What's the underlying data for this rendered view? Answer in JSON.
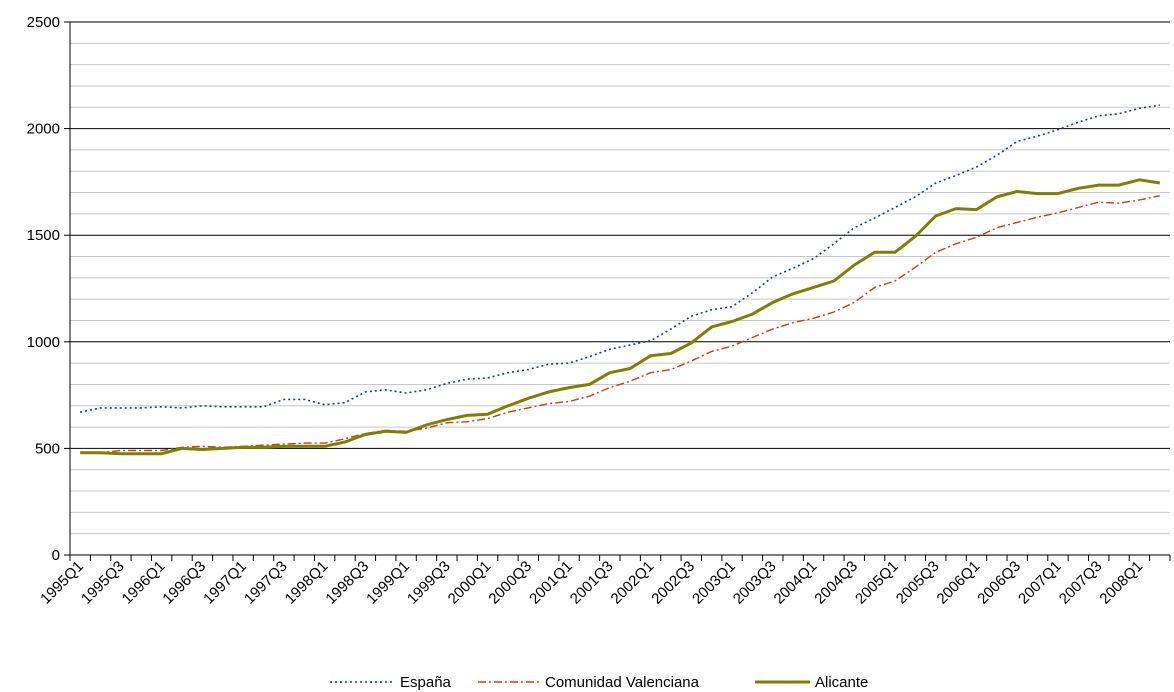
{
  "chart_data": {
    "type": "line",
    "title": "",
    "xlabel": "",
    "ylabel": "",
    "ylim": [
      0,
      2500
    ],
    "yticks": [
      0,
      500,
      1000,
      1500,
      2000,
      2500
    ],
    "y_minor_step": 100,
    "grid": "horizontal",
    "legend_position": "bottom",
    "categories": [
      "1995Q1",
      "1995Q2",
      "1995Q3",
      "1995Q4",
      "1996Q1",
      "1996Q2",
      "1996Q3",
      "1996Q4",
      "1997Q1",
      "1997Q2",
      "1997Q3",
      "1997Q4",
      "1998Q1",
      "1998Q2",
      "1998Q3",
      "1998Q4",
      "1999Q1",
      "1999Q2",
      "1999Q3",
      "1999Q4",
      "2000Q1",
      "2000Q2",
      "2000Q3",
      "2000Q4",
      "2001Q1",
      "2001Q2",
      "2001Q3",
      "2001Q4",
      "2002Q1",
      "2002Q2",
      "2002Q3",
      "2002Q4",
      "2003Q1",
      "2003Q2",
      "2003Q3",
      "2003Q4",
      "2004Q1",
      "2004Q2",
      "2004Q3",
      "2004Q4",
      "2005Q1",
      "2005Q2",
      "2005Q3",
      "2005Q4",
      "2006Q1",
      "2006Q2",
      "2006Q3",
      "2006Q4",
      "2007Q1",
      "2007Q2",
      "2007Q3",
      "2007Q4",
      "2008Q1",
      "2008Q2"
    ],
    "x_tick_labels": [
      "1995Q1",
      "1995Q3",
      "1996Q1",
      "1996Q3",
      "1997Q1",
      "1997Q3",
      "1998Q1",
      "1998Q3",
      "1999Q1",
      "1999Q3",
      "2000Q1",
      "2000Q3",
      "2001Q1",
      "2001Q3",
      "2002Q1",
      "2002Q3",
      "2003Q1",
      "2003Q3",
      "2004Q1",
      "2004Q3",
      "2005Q1",
      "2005Q3",
      "2006Q1",
      "2006Q3",
      "2007Q1",
      "2007Q3",
      "2008Q1"
    ],
    "series": [
      {
        "name": "España",
        "color": "#1f3f7a",
        "style": "dotted",
        "values": [
          670,
          690,
          690,
          690,
          695,
          690,
          700,
          695,
          695,
          695,
          730,
          730,
          705,
          715,
          765,
          775,
          760,
          775,
          805,
          825,
          830,
          855,
          870,
          895,
          900,
          930,
          965,
          985,
          1005,
          1060,
          1120,
          1150,
          1165,
          1230,
          1305,
          1345,
          1390,
          1460,
          1535,
          1580,
          1630,
          1680,
          1745,
          1780,
          1820,
          1875,
          1940,
          1965,
          1995,
          2030,
          2060,
          2070,
          2095,
          2110
        ]
      },
      {
        "name": "Comunidad Valenciana",
        "color": "#b5431a",
        "style": "dashdot",
        "values": [
          480,
          480,
          490,
          490,
          490,
          505,
          510,
          505,
          510,
          515,
          520,
          525,
          525,
          545,
          570,
          585,
          580,
          595,
          620,
          625,
          640,
          670,
          690,
          710,
          720,
          745,
          785,
          815,
          855,
          870,
          910,
          955,
          980,
          1020,
          1060,
          1090,
          1110,
          1140,
          1185,
          1255,
          1285,
          1350,
          1420,
          1460,
          1490,
          1535,
          1560,
          1585,
          1605,
          1630,
          1655,
          1650,
          1665,
          1685
        ]
      },
      {
        "name": "Alicante",
        "color": "#808000",
        "style": "solid",
        "values": [
          480,
          480,
          475,
          475,
          475,
          500,
          495,
          500,
          505,
          505,
          510,
          510,
          510,
          530,
          565,
          580,
          575,
          610,
          635,
          655,
          660,
          700,
          735,
          765,
          785,
          800,
          855,
          875,
          935,
          945,
          995,
          1070,
          1095,
          1130,
          1185,
          1225,
          1255,
          1285,
          1360,
          1420,
          1420,
          1495,
          1590,
          1625,
          1620,
          1680,
          1705,
          1695,
          1695,
          1720,
          1735,
          1735,
          1760,
          1745
        ]
      }
    ]
  }
}
